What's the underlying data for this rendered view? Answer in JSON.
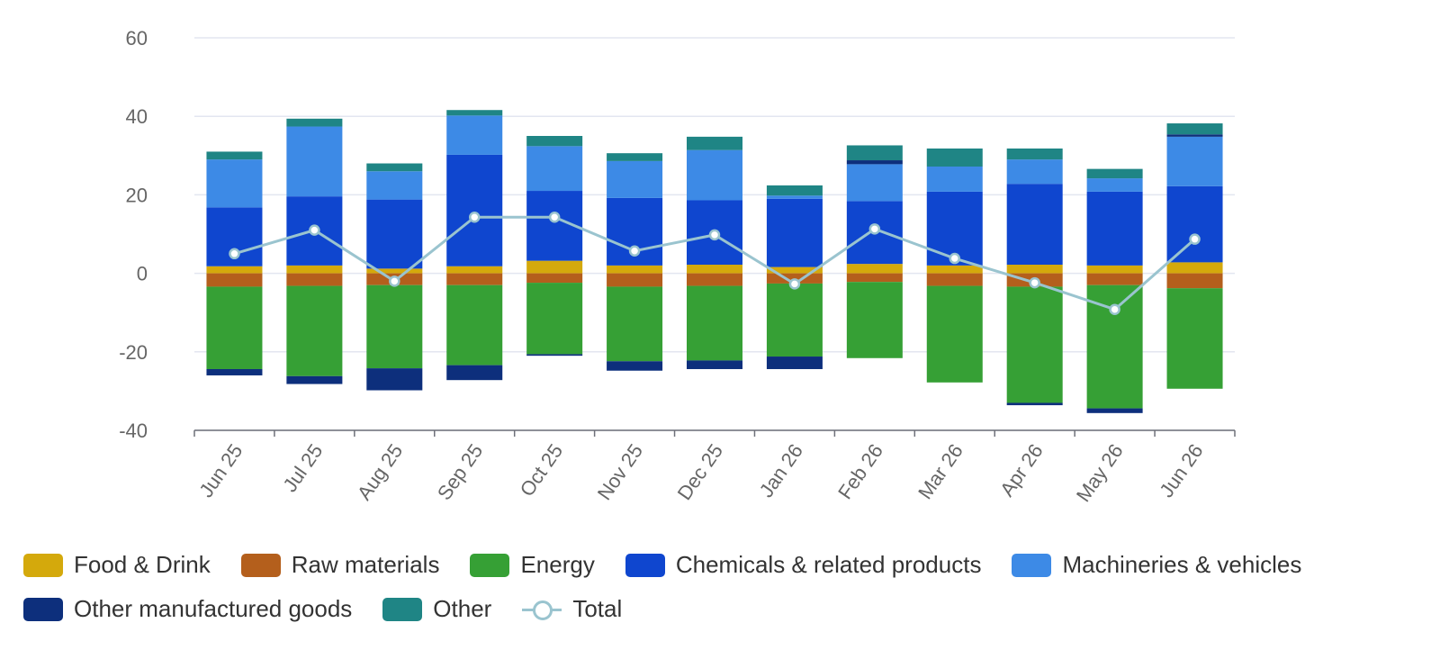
{
  "chart_data": {
    "type": "bar",
    "stacked": true,
    "title": "",
    "xlabel": "",
    "ylabel": "",
    "ylim": [
      -40,
      60
    ],
    "yticks": [
      60,
      40,
      20,
      0,
      -20,
      -40
    ],
    "grid": true,
    "legend_position": "bottom",
    "categories": [
      "Jun 25",
      "Jul 25",
      "Aug 25",
      "Sep 25",
      "Oct 25",
      "Nov 25",
      "Dec 25",
      "Jan 26",
      "Feb 26",
      "Mar 26",
      "Apr 26",
      "May 26",
      "Jun 26"
    ],
    "series": [
      {
        "name": "Food & Drink",
        "type": "bar",
        "color": "#d4a90c",
        "values": [
          1.8,
          2.0,
          1.2,
          1.8,
          3.2,
          2.0,
          2.2,
          1.6,
          2.4,
          2.0,
          2.2,
          2.0,
          2.8
        ]
      },
      {
        "name": "Raw materials",
        "type": "bar",
        "color": "#b45f1c",
        "values": [
          -3.4,
          -3.2,
          -3.0,
          -3.0,
          -2.4,
          -3.4,
          -3.2,
          -2.6,
          -2.2,
          -3.2,
          -3.4,
          -3.0,
          -3.8
        ]
      },
      {
        "name": "Energy",
        "type": "bar",
        "color": "#36a035",
        "values": [
          -21.0,
          -23.0,
          -21.2,
          -20.4,
          -18.2,
          -19.0,
          -19.0,
          -18.6,
          -19.4,
          -24.6,
          -29.6,
          -31.4,
          -25.6
        ]
      },
      {
        "name": "Chemicals & related products",
        "type": "bar",
        "color": "#0f46cf",
        "values": [
          15.0,
          17.6,
          17.6,
          28.4,
          17.8,
          17.2,
          16.4,
          17.4,
          16.0,
          18.8,
          20.6,
          18.8,
          19.4
        ]
      },
      {
        "name": "Machineries & vehicles",
        "type": "bar",
        "color": "#3d8ae6",
        "values": [
          12.2,
          17.8,
          7.2,
          10.0,
          11.4,
          9.4,
          12.8,
          0.8,
          9.4,
          6.4,
          6.2,
          3.4,
          12.6
        ]
      },
      {
        "name": "Other manufactured goods",
        "type": "bar",
        "color": "#0d2f7c",
        "values": [
          -1.6,
          -2.0,
          -5.6,
          -3.8,
          -0.4,
          -2.4,
          -2.2,
          -3.2,
          1.0,
          0.0,
          -0.6,
          -1.2,
          0.6
        ]
      },
      {
        "name": "Other",
        "type": "bar",
        "color": "#1f8585",
        "values": [
          2.0,
          2.0,
          2.0,
          1.4,
          2.6,
          2.0,
          3.4,
          2.6,
          3.8,
          4.6,
          2.8,
          2.4,
          2.8
        ]
      },
      {
        "name": "Total",
        "type": "line",
        "color": "#9ac4cf",
        "values": [
          5.0,
          11.0,
          -2.0,
          14.3,
          14.3,
          5.7,
          9.8,
          -2.7,
          11.3,
          3.8,
          -2.4,
          -9.2,
          8.7
        ]
      }
    ]
  }
}
